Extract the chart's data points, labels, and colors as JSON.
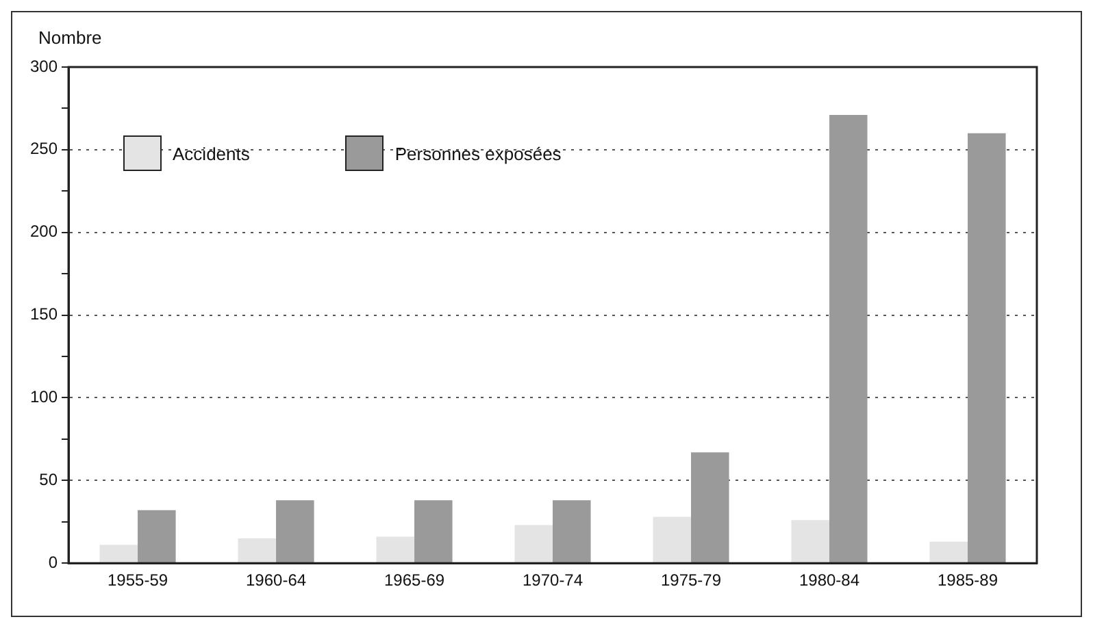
{
  "chart_data": {
    "type": "bar",
    "ylabel": "Nombre",
    "categories": [
      "1955-59",
      "1960-64",
      "1965-69",
      "1970-74",
      "1975-79",
      "1980-84",
      "1985-89"
    ],
    "series": [
      {
        "name": "Accidents",
        "color": "#e4e4e4",
        "values": [
          11,
          15,
          16,
          23,
          28,
          26,
          13
        ]
      },
      {
        "name": "Personnes exposées",
        "color": "#9a9a9a",
        "values": [
          32,
          38,
          38,
          38,
          67,
          271,
          260
        ]
      }
    ],
    "ylim": [
      0,
      300
    ],
    "yticks": [
      0,
      {
        "value": 25,
        "label": null
      },
      50,
      {
        "value": 75,
        "label": null
      },
      100,
      {
        "value": 125,
        "label": null
      },
      150,
      {
        "value": 175,
        "label": null
      },
      200,
      {
        "value": 225,
        "label": null
      },
      250,
      {
        "value": 275,
        "label": null
      },
      300
    ],
    "grid": "y",
    "legend": "top left"
  }
}
